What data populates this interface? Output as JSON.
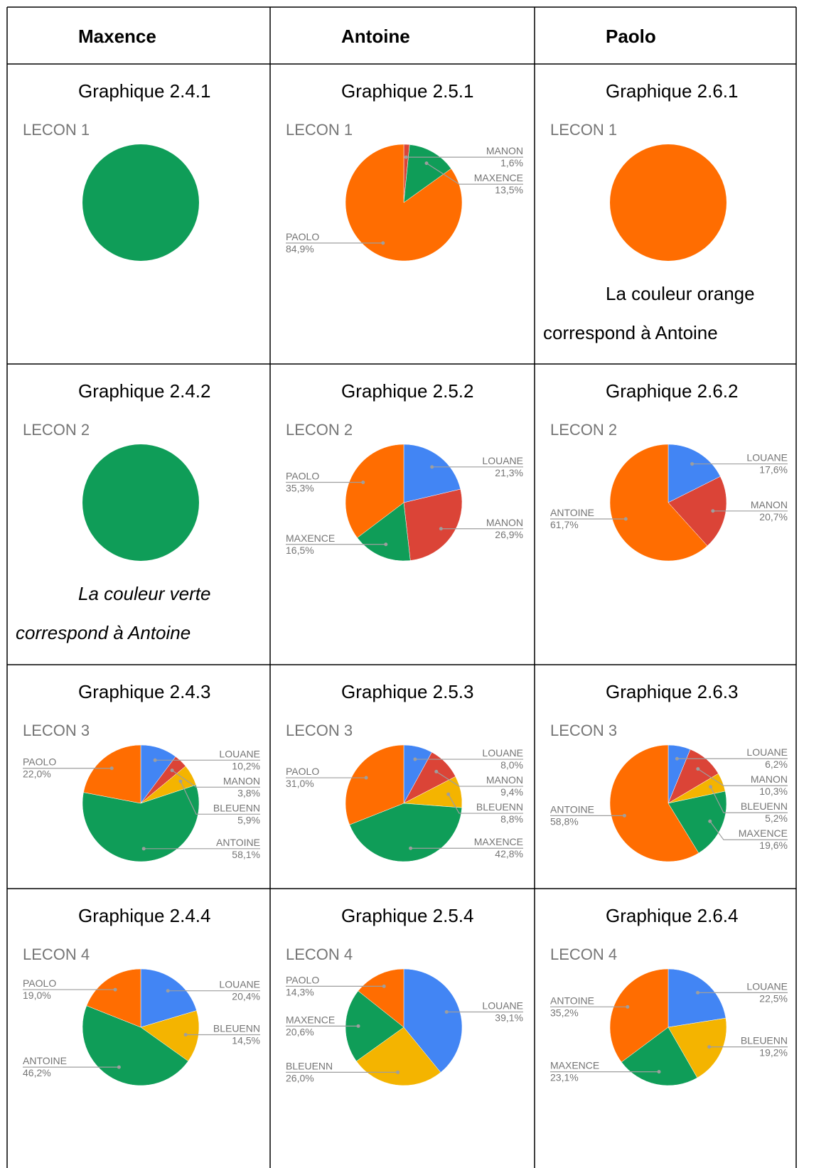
{
  "table": {
    "headers": [
      "Maxence",
      "Antoine",
      "Paolo"
    ]
  },
  "chart_data": [
    {
      "type": "pie",
      "caption": "Graphique 2.4.1",
      "title": "LECON 1",
      "categories": [
        null
      ],
      "values": [
        100
      ],
      "colors": [
        "#0f9d58"
      ]
    },
    {
      "type": "pie",
      "caption": "Graphique 2.5.1",
      "title": "LECON 1",
      "categories": [
        "MANON",
        "MAXENCE",
        "PAOLO"
      ],
      "values": [
        1.6,
        13.5,
        84.9
      ],
      "value_labels": [
        "1,6%",
        "13,5%",
        "84,9%"
      ],
      "colors": [
        "#db4437",
        "#0f9d58",
        "#ff6d01"
      ]
    },
    {
      "type": "pie",
      "caption": "Graphique 2.6.1",
      "title": "LECON 1",
      "categories": [
        null
      ],
      "values": [
        100
      ],
      "colors": [
        "#ff6d01"
      ],
      "note": "La couleur orange correspond à Antoine"
    },
    {
      "type": "pie",
      "caption": "Graphique 2.4.2",
      "title": "LECON 2",
      "categories": [
        null
      ],
      "values": [
        100
      ],
      "colors": [
        "#0f9d58"
      ],
      "note": "La couleur verte correspond à Antoine",
      "note_style": "italic"
    },
    {
      "type": "pie",
      "caption": "Graphique 2.5.2",
      "title": "LECON 2",
      "categories": [
        "LOUANE",
        "MANON",
        "MAXENCE",
        "PAOLO"
      ],
      "values": [
        21.3,
        26.9,
        16.5,
        35.3
      ],
      "value_labels": [
        "21,3%",
        "26,9%",
        "16,5%",
        "35,3%"
      ],
      "colors": [
        "#4285f4",
        "#db4437",
        "#0f9d58",
        "#ff6d01"
      ]
    },
    {
      "type": "pie",
      "caption": "Graphique 2.6.2",
      "title": "LECON 2",
      "categories": [
        "LOUANE",
        "MANON",
        "ANTOINE"
      ],
      "values": [
        17.6,
        20.7,
        61.7
      ],
      "value_labels": [
        "17,6%",
        "20,7%",
        "61,7%"
      ],
      "colors": [
        "#4285f4",
        "#db4437",
        "#ff6d01"
      ]
    },
    {
      "type": "pie",
      "caption": "Graphique 2.4.3",
      "title": "LECON 3",
      "categories": [
        "LOUANE",
        "MANON",
        "BLEUENN",
        "ANTOINE",
        "PAOLO"
      ],
      "values": [
        10.2,
        3.8,
        5.9,
        58.1,
        22.0
      ],
      "value_labels": [
        "10,2%",
        "3,8%",
        "5,9%",
        "58,1%",
        "22,0%"
      ],
      "colors": [
        "#4285f4",
        "#db4437",
        "#f4b400",
        "#0f9d58",
        "#ff6d01"
      ]
    },
    {
      "type": "pie",
      "caption": "Graphique 2.5.3",
      "title": "LECON 3",
      "categories": [
        "LOUANE",
        "MANON",
        "BLEUENN",
        "MAXENCE",
        "PAOLO"
      ],
      "values": [
        8.0,
        9.4,
        8.8,
        42.8,
        31.0
      ],
      "value_labels": [
        "8,0%",
        "9,4%",
        "8,8%",
        "42,8%",
        "31,0%"
      ],
      "colors": [
        "#4285f4",
        "#db4437",
        "#f4b400",
        "#0f9d58",
        "#ff6d01"
      ]
    },
    {
      "type": "pie",
      "caption": "Graphique 2.6.3",
      "title": "LECON 3",
      "categories": [
        "LOUANE",
        "MANON",
        "BLEUENN",
        "MAXENCE",
        "ANTOINE"
      ],
      "values": [
        6.2,
        10.3,
        5.2,
        19.6,
        58.8
      ],
      "value_labels": [
        "6,2%",
        "10,3%",
        "5,2%",
        "19,6%",
        "58,8%"
      ],
      "colors": [
        "#4285f4",
        "#db4437",
        "#f4b400",
        "#0f9d58",
        "#ff6d01"
      ]
    },
    {
      "type": "pie",
      "caption": "Graphique 2.4.4",
      "title": "LECON 4",
      "categories": [
        "LOUANE",
        "BLEUENN",
        "ANTOINE",
        "PAOLO"
      ],
      "values": [
        20.4,
        14.5,
        46.2,
        19.0
      ],
      "value_labels": [
        "20,4%",
        "14,5%",
        "46,2%",
        "19,0%"
      ],
      "colors": [
        "#4285f4",
        "#f4b400",
        "#0f9d58",
        "#ff6d01"
      ]
    },
    {
      "type": "pie",
      "caption": "Graphique 2.5.4",
      "title": "LECON 4",
      "categories": [
        "LOUANE",
        "BLEUENN",
        "MAXENCE",
        "PAOLO"
      ],
      "values": [
        39.1,
        26.0,
        20.6,
        14.3
      ],
      "value_labels": [
        "39,1%",
        "26,0%",
        "20,6%",
        "14,3%"
      ],
      "colors": [
        "#4285f4",
        "#f4b400",
        "#0f9d58",
        "#ff6d01"
      ]
    },
    {
      "type": "pie",
      "caption": "Graphique 2.6.4",
      "title": "LECON 4",
      "categories": [
        "LOUANE",
        "BLEUENN",
        "MAXENCE",
        "ANTOINE"
      ],
      "values": [
        22.5,
        19.2,
        23.1,
        35.2
      ],
      "value_labels": [
        "22,5%",
        "19,2%",
        "23,1%",
        "35,2%"
      ],
      "colors": [
        "#4285f4",
        "#f4b400",
        "#0f9d58",
        "#ff6d01"
      ]
    }
  ]
}
